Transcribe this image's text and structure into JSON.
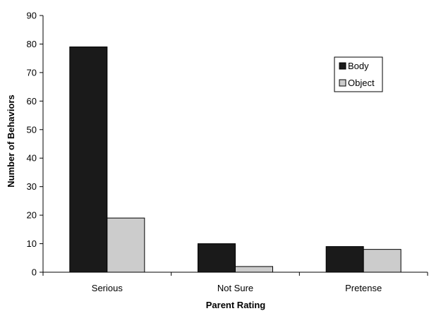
{
  "chart_data": {
    "type": "bar",
    "title": "",
    "xlabel": "Parent Rating",
    "ylabel": "Number of Behaviors",
    "categories": [
      "Serious",
      "Not Sure",
      "Pretense"
    ],
    "series": [
      {
        "name": "Body",
        "values": [
          79,
          10,
          9
        ],
        "color": "#1a1a1a"
      },
      {
        "name": "Object",
        "values": [
          19,
          2,
          8
        ],
        "color": "#cccccc"
      }
    ],
    "ylim": [
      0,
      90
    ],
    "yticks": [
      0,
      10,
      20,
      30,
      40,
      50,
      60,
      70,
      80,
      90
    ],
    "grid": false,
    "legend": "right"
  }
}
